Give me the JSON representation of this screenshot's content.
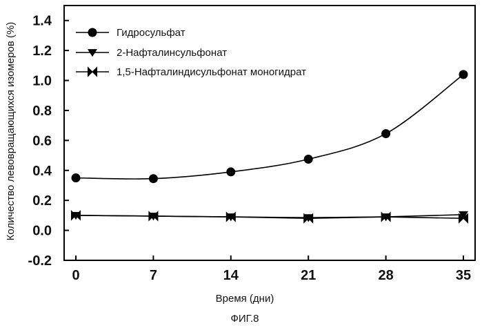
{
  "figure_caption": "ФИГ.8",
  "chart_data": {
    "type": "line",
    "title": "",
    "xlabel": "Время (дни)",
    "ylabel": "Количество левовращающихся изомеров (%)",
    "x": [
      0,
      7,
      14,
      21,
      28,
      35
    ],
    "x_tick_labels": [
      "0",
      "7",
      "14",
      "21",
      "28",
      "35"
    ],
    "y_tick_labels": [
      "-0.2",
      "0.0",
      "0.2",
      "0.4",
      "0.6",
      "0.8",
      "1.0",
      "1.2",
      "1.4"
    ],
    "ylim": [
      -0.2,
      1.5
    ],
    "grid": false,
    "legend_position": "top-left",
    "series": [
      {
        "name": "Гидросульфат",
        "marker": "circle",
        "values": [
          0.35,
          0.345,
          0.39,
          0.475,
          0.645,
          1.04
        ]
      },
      {
        "name": "2-Нафталинсульфонат",
        "marker": "triangle-down",
        "values": [
          0.1,
          0.095,
          0.09,
          0.085,
          0.09,
          0.105
        ]
      },
      {
        "name": "1,5-Нафталиндисульфонат моногидрат",
        "marker": "bowtie",
        "values": [
          0.1,
          0.095,
          0.09,
          0.08,
          0.09,
          0.08
        ]
      }
    ],
    "colors": {
      "line": "#000000",
      "marker": "#000000"
    }
  }
}
